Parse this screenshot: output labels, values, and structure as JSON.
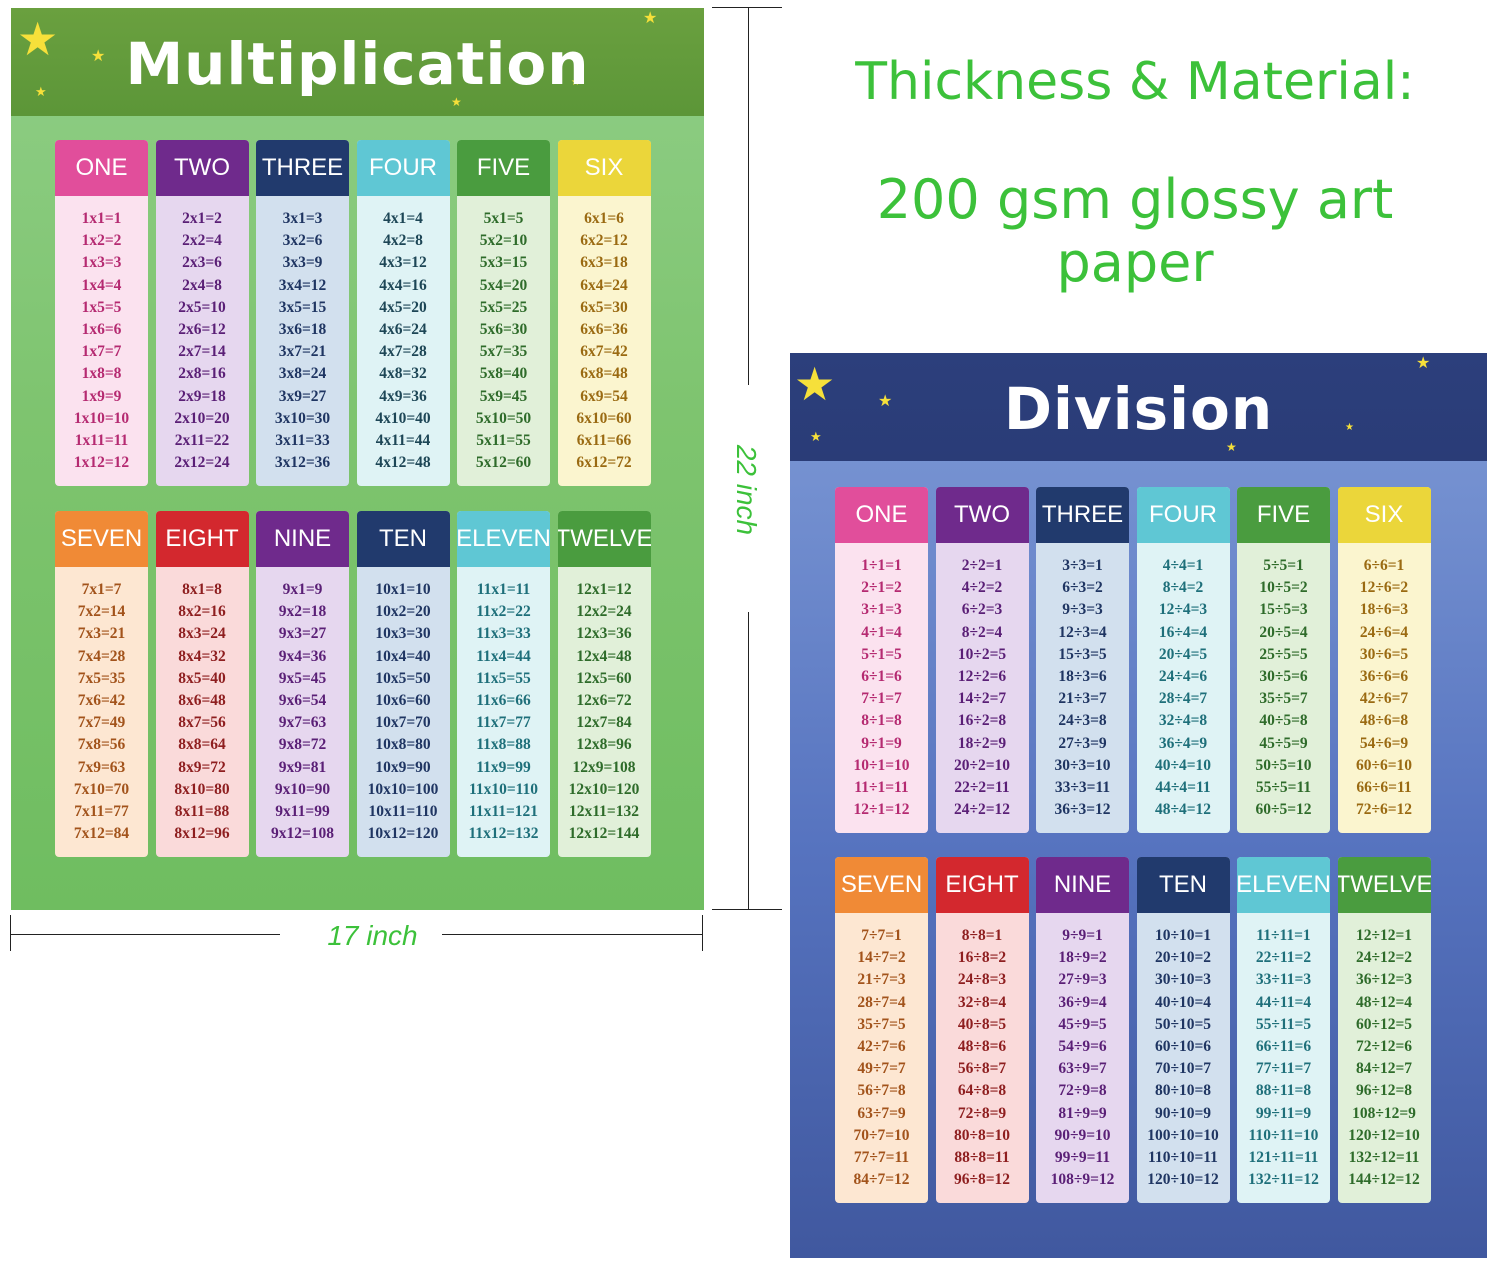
{
  "colors": {
    "text_green": "#3cc13a",
    "star": "#f6e03a"
  },
  "spec": {
    "line1": "Thickness & Material:",
    "line2": "200 gsm glossy art paper"
  },
  "dimensions": {
    "width": "17 inch",
    "height": "22 inch"
  },
  "multiplication": {
    "title": "Multiplication",
    "tables": [
      {
        "label": "ONE",
        "head": "#e14e9b",
        "bg": "#fbe2ef",
        "ink": "#b52a71",
        "facts": [
          "1x1=1",
          "1x2=2",
          "1x3=3",
          "1x4=4",
          "1x5=5",
          "1x6=6",
          "1x7=7",
          "1x8=8",
          "1x9=9",
          "1x10=10",
          "1x11=11",
          "1x12=12"
        ]
      },
      {
        "label": "TWO",
        "head": "#6f2a8c",
        "bg": "#e6d7ef",
        "ink": "#5a1f76",
        "facts": [
          "2x1=2",
          "2x2=4",
          "2x3=6",
          "2x4=8",
          "2x5=10",
          "2x6=12",
          "2x7=14",
          "2x8=16",
          "2x9=18",
          "2x10=20",
          "2x11=22",
          "2x12=24"
        ]
      },
      {
        "label": "THREE",
        "head": "#213a6d",
        "bg": "#d2e0ee",
        "ink": "#1f3562",
        "facts": [
          "3x1=3",
          "3x2=6",
          "3x3=9",
          "3x4=12",
          "3x5=15",
          "3x6=18",
          "3x7=21",
          "3x8=24",
          "3x9=27",
          "3x10=30",
          "3x11=33",
          "3x12=36"
        ]
      },
      {
        "label": "FOUR",
        "head": "#5fc7d4",
        "bg": "#dff3f5",
        "ink": "#1d4656",
        "facts": [
          "4x1=4",
          "4x2=8",
          "4x3=12",
          "4x4=16",
          "4x5=20",
          "4x6=24",
          "4x7=28",
          "4x8=32",
          "4x9=36",
          "4x10=40",
          "4x11=44",
          "4x12=48"
        ]
      },
      {
        "label": "FIVE",
        "head": "#4a9c3f",
        "bg": "#e1f0d9",
        "ink": "#2e6b2a",
        "facts": [
          "5x1=5",
          "5x2=10",
          "5x3=15",
          "5x4=20",
          "5x5=25",
          "5x6=30",
          "5x7=35",
          "5x8=40",
          "5x9=45",
          "5x10=50",
          "5x11=55",
          "5x12=60"
        ]
      },
      {
        "label": "SIX",
        "head": "#ebd63a",
        "bg": "#fbf5cf",
        "ink": "#9a6a12",
        "facts": [
          "6x1=6",
          "6x2=12",
          "6x3=18",
          "6x4=24",
          "6x5=30",
          "6x6=36",
          "6x7=42",
          "6x8=48",
          "6x9=54",
          "6x10=60",
          "6x11=66",
          "6x12=72"
        ]
      },
      {
        "label": "SEVEN",
        "head": "#f08a36",
        "bg": "#fde7d2",
        "ink": "#a2531b",
        "facts": [
          "7x1=7",
          "7x2=14",
          "7x3=21",
          "7x4=28",
          "7x5=35",
          "7x6=42",
          "7x7=49",
          "7x8=56",
          "7x9=63",
          "7x10=70",
          "7x11=77",
          "7x12=84"
        ]
      },
      {
        "label": "EIGHT",
        "head": "#d3282e",
        "bg": "#fadada",
        "ink": "#8e1e1f",
        "facts": [
          "8x1=8",
          "8x2=16",
          "8x3=24",
          "8x4=32",
          "8x5=40",
          "8x6=48",
          "8x7=56",
          "8x8=64",
          "8x9=72",
          "8x10=80",
          "8x11=88",
          "8x12=96"
        ]
      },
      {
        "label": "NINE",
        "head": "#6f2a8c",
        "bg": "#e6d7ef",
        "ink": "#5a1f76",
        "facts": [
          "9x1=9",
          "9x2=18",
          "9x3=27",
          "9x4=36",
          "9x5=45",
          "9x6=54",
          "9x7=63",
          "9x8=72",
          "9x9=81",
          "9x10=90",
          "9x11=99",
          "9x12=108"
        ]
      },
      {
        "label": "TEN",
        "head": "#213a6d",
        "bg": "#d2e0ee",
        "ink": "#1f3562",
        "facts": [
          "10x1=10",
          "10x2=20",
          "10x3=30",
          "10x4=40",
          "10x5=50",
          "10x6=60",
          "10x7=70",
          "10x8=80",
          "10x9=90",
          "10x10=100",
          "10x11=110",
          "10x12=120"
        ]
      },
      {
        "label": "ELEVEN",
        "head": "#5fc7d4",
        "bg": "#dff3f5",
        "ink": "#1e6f7a",
        "facts": [
          "11x1=11",
          "11x2=22",
          "11x3=33",
          "11x4=44",
          "11x5=55",
          "11x6=66",
          "11x7=77",
          "11x8=88",
          "11x9=99",
          "11x10=110",
          "11x11=121",
          "11x12=132"
        ]
      },
      {
        "label": "TWELVE",
        "head": "#4a9c3f",
        "bg": "#e1f0d9",
        "ink": "#2e6b2a",
        "facts": [
          "12x1=12",
          "12x2=24",
          "12x3=36",
          "12x4=48",
          "12x5=60",
          "12x6=72",
          "12x7=84",
          "12x8=96",
          "12x9=108",
          "12x10=120",
          "12x11=132",
          "12x12=144"
        ]
      }
    ]
  },
  "division": {
    "title": "Division",
    "tables": [
      {
        "label": "ONE",
        "head": "#e14e9b",
        "bg": "#fbe2ef",
        "ink": "#b52a71",
        "facts": [
          "1÷1=1",
          "2÷1=2",
          "3÷1=3",
          "4÷1=4",
          "5÷1=5",
          "6÷1=6",
          "7÷1=7",
          "8÷1=8",
          "9÷1=9",
          "10÷1=10",
          "11÷1=11",
          "12÷1=12"
        ]
      },
      {
        "label": "TWO",
        "head": "#6f2a8c",
        "bg": "#e6d7ef",
        "ink": "#5a1f76",
        "facts": [
          "2÷2=1",
          "4÷2=2",
          "6÷2=3",
          "8÷2=4",
          "10÷2=5",
          "12÷2=6",
          "14÷2=7",
          "16÷2=8",
          "18÷2=9",
          "20÷2=10",
          "22÷2=11",
          "24÷2=12"
        ]
      },
      {
        "label": "THREE",
        "head": "#213a6d",
        "bg": "#d2e0ee",
        "ink": "#1f3562",
        "facts": [
          "3÷3=1",
          "6÷3=2",
          "9÷3=3",
          "12÷3=4",
          "15÷3=5",
          "18÷3=6",
          "21÷3=7",
          "24÷3=8",
          "27÷3=9",
          "30÷3=10",
          "33÷3=11",
          "36÷3=12"
        ]
      },
      {
        "label": "FOUR",
        "head": "#5fc7d4",
        "bg": "#dff3f5",
        "ink": "#1e6f7a",
        "facts": [
          "4÷4=1",
          "8÷4=2",
          "12÷4=3",
          "16÷4=4",
          "20÷4=5",
          "24÷4=6",
          "28÷4=7",
          "32÷4=8",
          "36÷4=9",
          "40÷4=10",
          "44÷4=11",
          "48÷4=12"
        ]
      },
      {
        "label": "FIVE",
        "head": "#4a9c3f",
        "bg": "#e1f0d9",
        "ink": "#2e6b2a",
        "facts": [
          "5÷5=1",
          "10÷5=2",
          "15÷5=3",
          "20÷5=4",
          "25÷5=5",
          "30÷5=6",
          "35÷5=7",
          "40÷5=8",
          "45÷5=9",
          "50÷5=10",
          "55÷5=11",
          "60÷5=12"
        ]
      },
      {
        "label": "SIX",
        "head": "#ebd63a",
        "bg": "#fbf5cf",
        "ink": "#9a6a12",
        "facts": [
          "6÷6=1",
          "12÷6=2",
          "18÷6=3",
          "24÷6=4",
          "30÷6=5",
          "36÷6=6",
          "42÷6=7",
          "48÷6=8",
          "54÷6=9",
          "60÷6=10",
          "66÷6=11",
          "72÷6=12"
        ]
      },
      {
        "label": "SEVEN",
        "head": "#f08a36",
        "bg": "#fde7d2",
        "ink": "#a2531b",
        "facts": [
          "7÷7=1",
          "14÷7=2",
          "21÷7=3",
          "28÷7=4",
          "35÷7=5",
          "42÷7=6",
          "49÷7=7",
          "56÷7=8",
          "63÷7=9",
          "70÷7=10",
          "77÷7=11",
          "84÷7=12"
        ]
      },
      {
        "label": "EIGHT",
        "head": "#d3282e",
        "bg": "#fadada",
        "ink": "#8e1e1f",
        "facts": [
          "8÷8=1",
          "16÷8=2",
          "24÷8=3",
          "32÷8=4",
          "40÷8=5",
          "48÷8=6",
          "56÷8=7",
          "64÷8=8",
          "72÷8=9",
          "80÷8=10",
          "88÷8=11",
          "96÷8=12"
        ]
      },
      {
        "label": "NINE",
        "head": "#6f2a8c",
        "bg": "#e6d7ef",
        "ink": "#5a1f76",
        "facts": [
          "9÷9=1",
          "18÷9=2",
          "27÷9=3",
          "36÷9=4",
          "45÷9=5",
          "54÷9=6",
          "63÷9=7",
          "72÷9=8",
          "81÷9=9",
          "90÷9=10",
          "99÷9=11",
          "108÷9=12"
        ]
      },
      {
        "label": "TEN",
        "head": "#213a6d",
        "bg": "#d2e0ee",
        "ink": "#1f3562",
        "facts": [
          "10÷10=1",
          "20÷10=2",
          "30÷10=3",
          "40÷10=4",
          "50÷10=5",
          "60÷10=6",
          "70÷10=7",
          "80÷10=8",
          "90÷10=9",
          "100÷10=10",
          "110÷10=11",
          "120÷10=12"
        ]
      },
      {
        "label": "ELEVEN",
        "head": "#5fc7d4",
        "bg": "#dff3f5",
        "ink": "#1e6f7a",
        "facts": [
          "11÷11=1",
          "22÷11=2",
          "33÷11=3",
          "44÷11=4",
          "55÷11=5",
          "66÷11=6",
          "77÷11=7",
          "88÷11=8",
          "99÷11=9",
          "110÷11=10",
          "121÷11=11",
          "132÷11=12"
        ]
      },
      {
        "label": "TWELVE",
        "head": "#4a9c3f",
        "bg": "#e1f0d9",
        "ink": "#2e6b2a",
        "facts": [
          "12÷12=1",
          "24÷12=2",
          "36÷12=3",
          "48÷12=4",
          "60÷12=5",
          "72÷12=6",
          "84÷12=7",
          "96÷12=8",
          "108÷12=9",
          "120÷12=10",
          "132÷12=11",
          "144÷12=12"
        ]
      }
    ]
  }
}
